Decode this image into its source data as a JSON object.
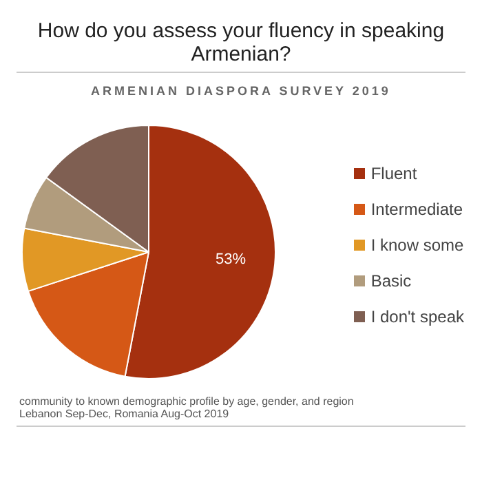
{
  "chart_data": {
    "type": "pie",
    "title": "How do you assess your fluency in speaking Armenian?",
    "subtitle": "ARMENIAN DIASPORA SURVEY 2019",
    "categories": [
      "Fluent",
      "Intermediate",
      "I know some",
      "Basic",
      "I don't speak"
    ],
    "values": [
      53,
      17,
      8,
      7,
      15
    ],
    "colors": [
      "#a5300f",
      "#d55816",
      "#e19825",
      "#b19c7d",
      "#7f5f52"
    ],
    "value_labels": [
      "53%",
      null,
      null,
      null,
      null
    ],
    "legend": "right",
    "annotations": [
      "community to known demographic profile by age, gender, and region",
      "Lebanon Sep-Dec, Romania Aug-Oct 2019"
    ]
  }
}
